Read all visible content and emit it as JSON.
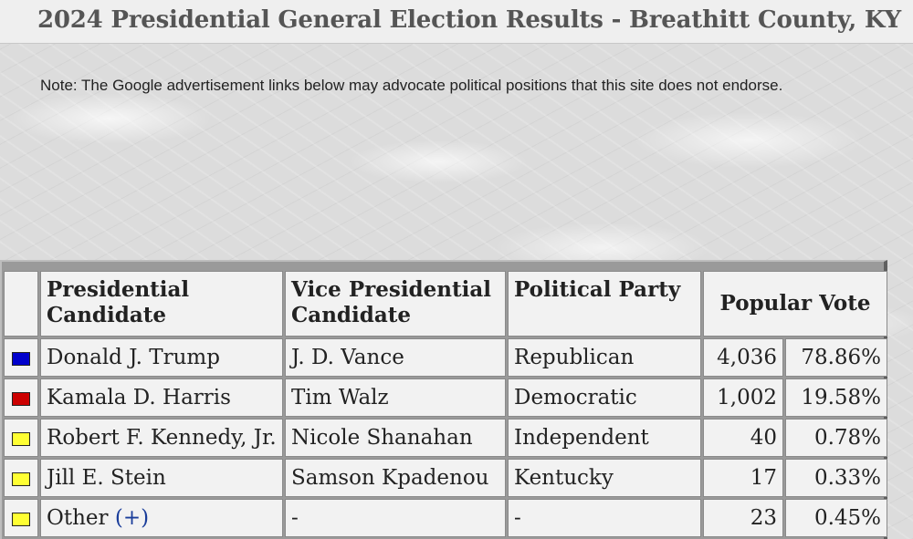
{
  "page": {
    "title": "2024 Presidential General Election Results - Breathitt County, KY",
    "note": "Note: The Google advertisement links below may advocate political positions that this site does not endorse."
  },
  "table": {
    "headers": {
      "candidate": "Presidential Candidate",
      "vice": "Vice Presidential Candidate",
      "party": "Political Party",
      "popular_vote": "Popular Vote"
    },
    "rows": [
      {
        "color": "#0000cc",
        "candidate": "Donald J. Trump",
        "vice": "J. D. Vance",
        "party": "Republican",
        "votes": "4,036",
        "percent": "78.86%"
      },
      {
        "color": "#cc0000",
        "candidate": "Kamala D. Harris",
        "vice": "Tim Walz",
        "party": "Democratic",
        "votes": "1,002",
        "percent": "19.58%"
      },
      {
        "color": "#ffff33",
        "candidate": "Robert F. Kennedy, Jr.",
        "vice": "Nicole Shanahan",
        "party": "Independent",
        "votes": "40",
        "percent": "0.78%"
      },
      {
        "color": "#ffff33",
        "candidate": "Jill E. Stein",
        "vice": "Samson Kpadenou",
        "party": "Kentucky",
        "votes": "17",
        "percent": "0.33%"
      },
      {
        "color": "#ffff33",
        "candidate": "Other",
        "expand": "(+)",
        "vice": "-",
        "party": "-",
        "votes": "23",
        "percent": "0.45%"
      }
    ]
  }
}
